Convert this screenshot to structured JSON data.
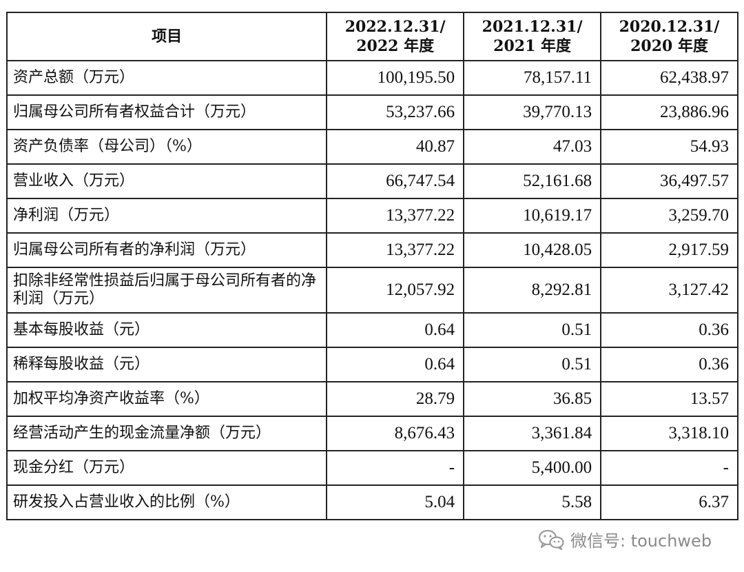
{
  "table": {
    "headers": [
      {
        "line1": "项目",
        "line2": ""
      },
      {
        "line1": "2022.12.31/",
        "line2": "2022 年度"
      },
      {
        "line1": "2021.12.31/",
        "line2": "2021 年度"
      },
      {
        "line1": "2020.12.31/",
        "line2": "2020 年度"
      }
    ],
    "rows": [
      {
        "label": "资产总额（万元）",
        "v2022": "100,195.50",
        "v2021": "78,157.11",
        "v2020": "62,438.97"
      },
      {
        "label": "归属母公司所有者权益合计（万元）",
        "v2022": "53,237.66",
        "v2021": "39,770.13",
        "v2020": "23,886.96"
      },
      {
        "label": "资产负债率（母公司）（%）",
        "v2022": "40.87",
        "v2021": "47.03",
        "v2020": "54.93"
      },
      {
        "label": "营业收入（万元）",
        "v2022": "66,747.54",
        "v2021": "52,161.68",
        "v2020": "36,497.57"
      },
      {
        "label": "净利润（万元）",
        "v2022": "13,377.22",
        "v2021": "10,619.17",
        "v2020": "3,259.70"
      },
      {
        "label": "归属母公司所有者的净利润（万元）",
        "v2022": "13,377.22",
        "v2021": "10,428.05",
        "v2020": "2,917.59"
      },
      {
        "label": "扣除非经常性损益后归属于母公司所有者的净利润（万元）",
        "v2022": "12,057.92",
        "v2021": "8,292.81",
        "v2020": "3,127.42"
      },
      {
        "label": "基本每股收益（元）",
        "v2022": "0.64",
        "v2021": "0.51",
        "v2020": "0.36"
      },
      {
        "label": "稀释每股收益（元）",
        "v2022": "0.64",
        "v2021": "0.51",
        "v2020": "0.36"
      },
      {
        "label": "加权平均净资产收益率（%）",
        "v2022": "28.79",
        "v2021": "36.85",
        "v2020": "13.57"
      },
      {
        "label": "经营活动产生的现金流量净额（万元）",
        "v2022": "8,676.43",
        "v2021": "3,361.84",
        "v2020": "3,318.10"
      },
      {
        "label": "现金分红（万元）",
        "v2022": "-",
        "v2021": "5,400.00",
        "v2020": "-"
      },
      {
        "label": "研发投入占营业收入的比例（%）",
        "v2022": "5.04",
        "v2021": "5.58",
        "v2020": "6.37"
      }
    ]
  },
  "watermark": {
    "text": "微信号: touchweb",
    "icon": "wechat-icon"
  }
}
